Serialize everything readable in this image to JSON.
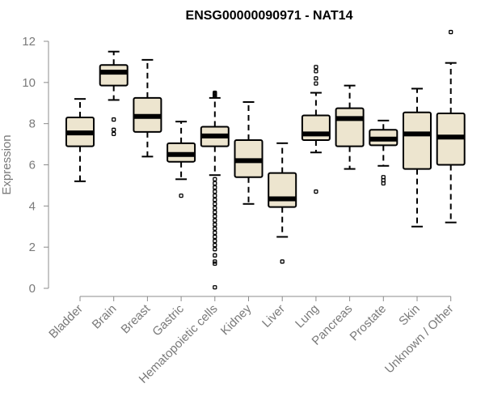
{
  "colors": {
    "box_fill": "#ede5cf",
    "box_stroke": "#000000",
    "median": "#000000",
    "axis": "#8c8c8c",
    "axis_text": "#7a7a7a",
    "title": "#000000"
  },
  "chart_data": {
    "type": "boxplot",
    "title": "ENSG00000090971 - NAT14",
    "xlabel": "",
    "ylabel": "Expression",
    "ylim": [
      0,
      12
    ],
    "yticks": [
      0,
      2,
      4,
      6,
      8,
      10,
      12
    ],
    "grid": false,
    "categories": [
      "Bladder",
      "Brain",
      "Breast",
      "Gastric",
      "Hematopoietic cells",
      "Kidney",
      "Liver",
      "Lung",
      "Pancreas",
      "Prostate",
      "Skin",
      "Unknown / Other"
    ],
    "boxes": [
      {
        "name": "Bladder",
        "whisker_low": 5.2,
        "q1": 6.9,
        "median": 7.55,
        "q3": 8.3,
        "whisker_high": 9.2,
        "outliers": []
      },
      {
        "name": "Brain",
        "whisker_low": 9.15,
        "q1": 9.85,
        "median": 10.5,
        "q3": 10.85,
        "whisker_high": 11.5,
        "outliers": [
          8.2,
          7.7,
          7.5
        ]
      },
      {
        "name": "Breast",
        "whisker_low": 6.4,
        "q1": 7.6,
        "median": 8.35,
        "q3": 9.25,
        "whisker_high": 11.1,
        "outliers": []
      },
      {
        "name": "Gastric",
        "whisker_low": 5.3,
        "q1": 6.15,
        "median": 6.5,
        "q3": 7.05,
        "whisker_high": 8.1,
        "outliers": [
          4.5
        ]
      },
      {
        "name": "Hematopoietic cells",
        "whisker_low": 5.5,
        "q1": 6.9,
        "median": 7.4,
        "q3": 7.85,
        "whisker_high": 9.25,
        "outliers": [
          9.35,
          9.4,
          9.45,
          9.5,
          5.3,
          5.1,
          4.9,
          4.7,
          4.5,
          4.3,
          4.1,
          3.9,
          3.7,
          3.5,
          3.3,
          3.1,
          2.9,
          2.7,
          2.5,
          2.3,
          2.1,
          1.9,
          1.6,
          1.3,
          1.2,
          0.05
        ]
      },
      {
        "name": "Kidney",
        "whisker_low": 4.1,
        "q1": 5.4,
        "median": 6.2,
        "q3": 7.2,
        "whisker_high": 9.05,
        "outliers": []
      },
      {
        "name": "Liver",
        "whisker_low": 2.5,
        "q1": 3.95,
        "median": 4.35,
        "q3": 5.6,
        "whisker_high": 7.05,
        "outliers": [
          1.3
        ]
      },
      {
        "name": "Lung",
        "whisker_low": 6.6,
        "q1": 7.2,
        "median": 7.5,
        "q3": 8.4,
        "whisker_high": 9.5,
        "outliers": [
          10.75,
          10.55,
          10.2,
          9.95,
          4.7
        ]
      },
      {
        "name": "Pancreas",
        "whisker_low": 5.8,
        "q1": 6.9,
        "median": 8.25,
        "q3": 8.75,
        "whisker_high": 9.85,
        "outliers": []
      },
      {
        "name": "Prostate",
        "whisker_low": 5.95,
        "q1": 6.95,
        "median": 7.25,
        "q3": 7.7,
        "whisker_high": 8.15,
        "outliers": [
          5.4,
          5.25,
          5.1
        ]
      },
      {
        "name": "Skin",
        "whisker_low": 3.0,
        "q1": 5.8,
        "median": 7.5,
        "q3": 8.55,
        "whisker_high": 9.7,
        "outliers": []
      },
      {
        "name": "Unknown / Other",
        "whisker_low": 3.2,
        "q1": 6.0,
        "median": 7.35,
        "q3": 8.5,
        "whisker_high": 10.95,
        "outliers": [
          12.45
        ]
      }
    ]
  }
}
